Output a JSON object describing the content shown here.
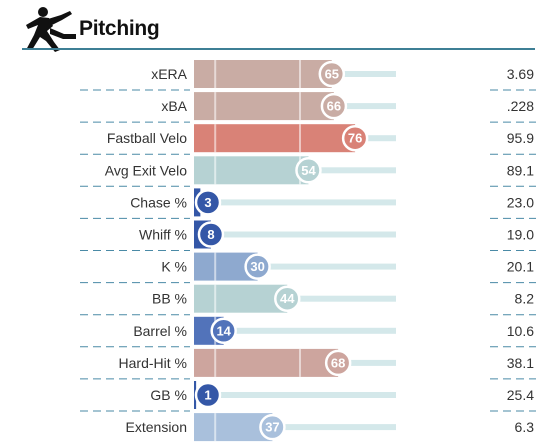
{
  "header": {
    "title": "Pitching",
    "icon": "pitcher-silhouette-icon",
    "rule_color": "#3e7f95"
  },
  "chart_data": {
    "type": "bar",
    "orientation": "horizontal",
    "value_kind": "percentile",
    "xlim": [
      0,
      100
    ],
    "reference_lines": [
      10,
      50,
      90
    ],
    "categories": [
      "xERA",
      "xBA",
      "Fastball Velo",
      "Avg Exit Velo",
      "Chase %",
      "Whiff %",
      "K %",
      "BB %",
      "Barrel %",
      "Hard-Hit %",
      "GB %",
      "Extension"
    ],
    "percentiles": [
      65,
      66,
      76,
      54,
      3,
      8,
      30,
      44,
      14,
      68,
      1,
      37
    ],
    "stat_values": [
      "3.69",
      ".228",
      "95.9",
      "89.1",
      "23.0",
      "19.0",
      "20.1",
      "8.2",
      "10.6",
      "38.1",
      "25.4",
      "6.3"
    ],
    "colors": [
      "#c9aca4",
      "#c9aca4",
      "#d98277",
      "#b6d2d3",
      "#3457a7",
      "#3457a7",
      "#8ea9cf",
      "#b6d2d3",
      "#5273ba",
      "#cda59e",
      "#3457a7",
      "#a9c0dc"
    ],
    "track_color": "#d4e8ea",
    "divider_color": "#4a8aa6"
  }
}
